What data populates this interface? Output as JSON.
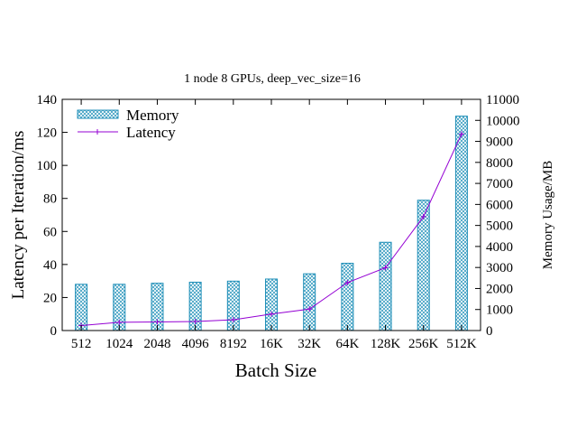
{
  "chart_data": {
    "type": "bar",
    "title": "1 node 8 GPUs, deep_vec_size=16",
    "xlabel": "Batch Size",
    "ylabel": "Latency per Iteration/ms",
    "y2label": "Memory Usage/MB",
    "categories": [
      "512",
      "1024",
      "2048",
      "4096",
      "8192",
      "16K",
      "32K",
      "64K",
      "128K",
      "256K",
      "512K"
    ],
    "ylim": [
      0,
      140
    ],
    "yticks": [
      "0",
      "20",
      "40",
      "60",
      "80",
      "100",
      "120",
      "140"
    ],
    "y2lim": [
      0,
      11000
    ],
    "y2ticks": [
      "0",
      "1000",
      "2000",
      "3000",
      "4000",
      "5000",
      "6000",
      "7000",
      "8000",
      "9000",
      "10000",
      "11000"
    ],
    "series": [
      {
        "name": "Memory",
        "kind": "bar",
        "axis": "y2",
        "color": "#1f8fb8",
        "values": [
          2200,
          2200,
          2250,
          2300,
          2350,
          2450,
          2700,
          3200,
          4200,
          6200,
          10200
        ]
      },
      {
        "name": "Latency",
        "kind": "line",
        "axis": "y",
        "color": "#9400d3",
        "values": [
          3,
          5,
          5.2,
          5.5,
          6.5,
          10,
          13,
          29,
          38,
          69,
          119
        ]
      }
    ],
    "legend_position": "top-left",
    "grid": false
  }
}
